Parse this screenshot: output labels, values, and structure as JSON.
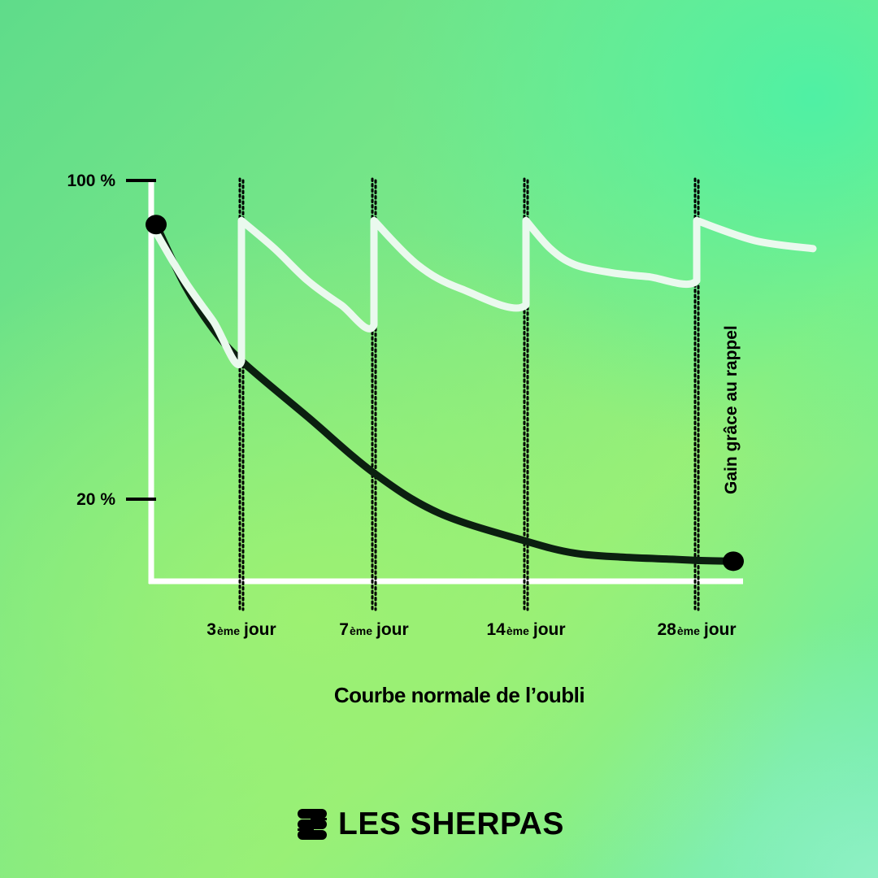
{
  "chart_data": {
    "type": "line",
    "title": "",
    "xlabel": "Courbe normale de l’oubli",
    "ylabel": "",
    "ylim": [
      0,
      100
    ],
    "y_ticks": [
      "100 %",
      "20 %"
    ],
    "y_tick_values": [
      100,
      20
    ],
    "x_range": [
      0,
      30
    ],
    "x_markers": [
      {
        "day": 3,
        "num": "3",
        "sup": "ème",
        "word": "jour"
      },
      {
        "day": 7,
        "num": "7",
        "sup": "ème",
        "word": "jour"
      },
      {
        "day": 14,
        "num": "14",
        "sup": "ème",
        "word": "jour"
      },
      {
        "day": 28,
        "num": "28",
        "sup": "ème",
        "word": "jour"
      }
    ],
    "annotation": "Gain grâce au rappel",
    "series": [
      {
        "color": "#0b1f10",
        "x": [
          0,
          1,
          2,
          3,
          5,
          7,
          10,
          14,
          18,
          22,
          26,
          28,
          30
        ],
        "y": [
          89,
          74,
          63,
          55,
          41,
          27,
          17,
          10,
          7,
          6,
          5.5,
          5.2,
          5
        ]
      },
      {
        "color": "#eaf9ee",
        "x": [
          0,
          1,
          2,
          3,
          3,
          4,
          5,
          6,
          7,
          7,
          9,
          11,
          14,
          14,
          16,
          18,
          21,
          24,
          28,
          28,
          29,
          30
        ],
        "y": [
          87,
          75,
          65,
          55,
          90,
          83,
          75,
          69,
          64,
          90,
          79,
          73,
          69,
          90,
          83,
          79,
          77,
          76,
          75,
          90,
          85,
          83
        ]
      }
    ],
    "endpoint_markers": [
      {
        "x": 0,
        "y": 89
      },
      {
        "x": 30,
        "y": 5
      }
    ]
  },
  "brand": {
    "name": "LES SHERPAS"
  }
}
